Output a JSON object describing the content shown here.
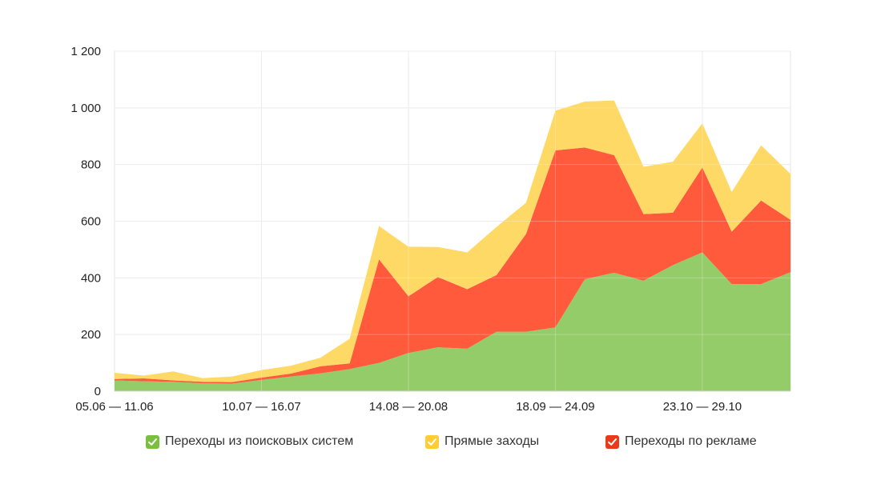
{
  "chart_data": {
    "type": "area",
    "stacked": true,
    "x_tick_labels": [
      "05.06 — 11.06",
      "10.07 — 16.07",
      "14.08 — 20.08",
      "18.09 — 24.09",
      "23.10 — 29.10"
    ],
    "y_tick_labels": [
      "0",
      "200",
      "400",
      "600",
      "800",
      "1 000",
      "1 200"
    ],
    "ylim": [
      0,
      1200
    ],
    "grid": true,
    "legend_position": "bottom",
    "weeks": 24,
    "series": [
      {
        "name": "Переходы из поисковых систем",
        "color": "#95cc6a",
        "values": [
          38,
          35,
          33,
          28,
          27,
          40,
          52,
          63,
          78,
          100,
          135,
          155,
          150,
          210,
          210,
          225,
          395,
          418,
          390,
          445,
          490,
          378,
          378,
          420
        ]
      },
      {
        "name": "Переходы по рекламе",
        "color": "#ff5a3c",
        "values": [
          5,
          10,
          5,
          5,
          5,
          8,
          10,
          25,
          20,
          365,
          200,
          248,
          210,
          200,
          345,
          625,
          465,
          415,
          235,
          185,
          300,
          185,
          295,
          185
        ]
      },
      {
        "name": "Прямые заходы",
        "color": "#ffd966",
        "values": [
          22,
          10,
          32,
          13,
          20,
          27,
          28,
          30,
          87,
          118,
          175,
          106,
          130,
          170,
          110,
          140,
          162,
          193,
          167,
          180,
          155,
          140,
          195,
          162
        ]
      }
    ]
  },
  "legend": [
    {
      "label": "Переходы из поисковых систем",
      "color": "#7cbf3f"
    },
    {
      "label": "Прямые заходы",
      "color": "#ffcc33"
    },
    {
      "label": "Переходы по рекламе",
      "color": "#e93a1a"
    }
  ]
}
